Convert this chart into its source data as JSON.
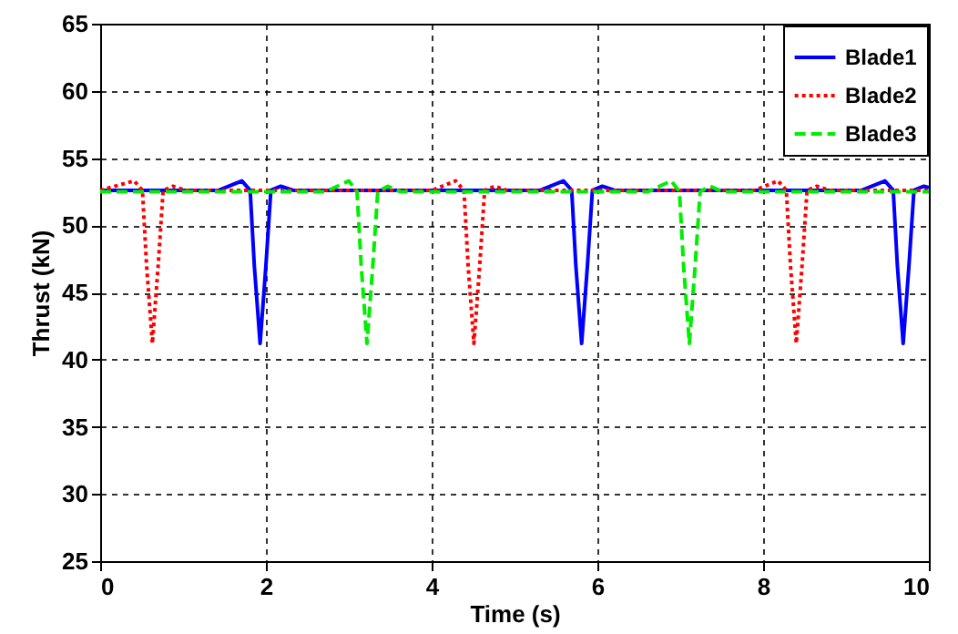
{
  "chart_data": {
    "type": "line",
    "xlabel": "Time (s)",
    "ylabel": "Thrust (kN)",
    "xlim": [
      0,
      10
    ],
    "ylim": [
      25,
      65
    ],
    "xticks": [
      0,
      2,
      4,
      6,
      8,
      10
    ],
    "yticks": [
      25,
      30,
      35,
      40,
      45,
      50,
      55,
      60,
      65
    ],
    "grid": true,
    "legend": "top right",
    "marker": "none",
    "series": [
      {
        "name": "Blade1",
        "color": "#0000ff",
        "line_style": "solid",
        "x": [
          0,
          1.43,
          1.71,
          1.81,
          1.86,
          1.93,
          2.0,
          2.06,
          2.18,
          2.33,
          5.31,
          5.59,
          5.69,
          5.74,
          5.81,
          5.88,
          5.94,
          6.06,
          6.21,
          9.19,
          9.47,
          9.57,
          9.62,
          9.69,
          9.76,
          9.82,
          9.94,
          10
        ],
        "values": [
          52.6,
          52.6,
          53.3,
          52.6,
          47,
          41.2,
          47,
          52.6,
          52.9,
          52.6,
          52.6,
          53.3,
          52.6,
          47,
          41.2,
          47,
          52.6,
          52.9,
          52.6,
          52.6,
          53.3,
          52.6,
          47,
          41.2,
          47,
          52.6,
          52.9,
          52.8
        ]
      },
      {
        "name": "Blade2",
        "color": "#ff0000",
        "line_style": "dotted",
        "x": [
          0,
          0.41,
          0.51,
          0.56,
          0.63,
          0.7,
          0.76,
          0.88,
          1.03,
          4.01,
          4.29,
          4.39,
          4.44,
          4.51,
          4.58,
          4.64,
          4.76,
          4.91,
          7.9,
          8.18,
          8.28,
          8.33,
          8.4,
          8.47,
          8.53,
          8.65,
          8.8,
          10
        ],
        "values": [
          52.6,
          53.3,
          52.6,
          47,
          41.2,
          47,
          52.6,
          52.9,
          52.6,
          52.6,
          53.3,
          52.6,
          47,
          41.2,
          47,
          52.6,
          52.9,
          52.6,
          52.6,
          53.3,
          52.6,
          47,
          41.2,
          47,
          52.6,
          52.9,
          52.6,
          52.6
        ]
      },
      {
        "name": "Blade3",
        "color": "#00ee00",
        "line_style": "dashed",
        "x": [
          0,
          2.72,
          3.0,
          3.1,
          3.15,
          3.22,
          3.29,
          3.35,
          3.47,
          3.62,
          6.61,
          6.89,
          6.99,
          7.04,
          7.11,
          7.18,
          7.24,
          7.36,
          7.51,
          10
        ],
        "values": [
          52.5,
          52.5,
          53.3,
          52.5,
          47,
          41.2,
          47,
          52.5,
          52.9,
          52.5,
          52.5,
          53.3,
          52.5,
          47,
          41.2,
          47,
          52.5,
          52.9,
          52.5,
          52.5
        ]
      }
    ]
  }
}
